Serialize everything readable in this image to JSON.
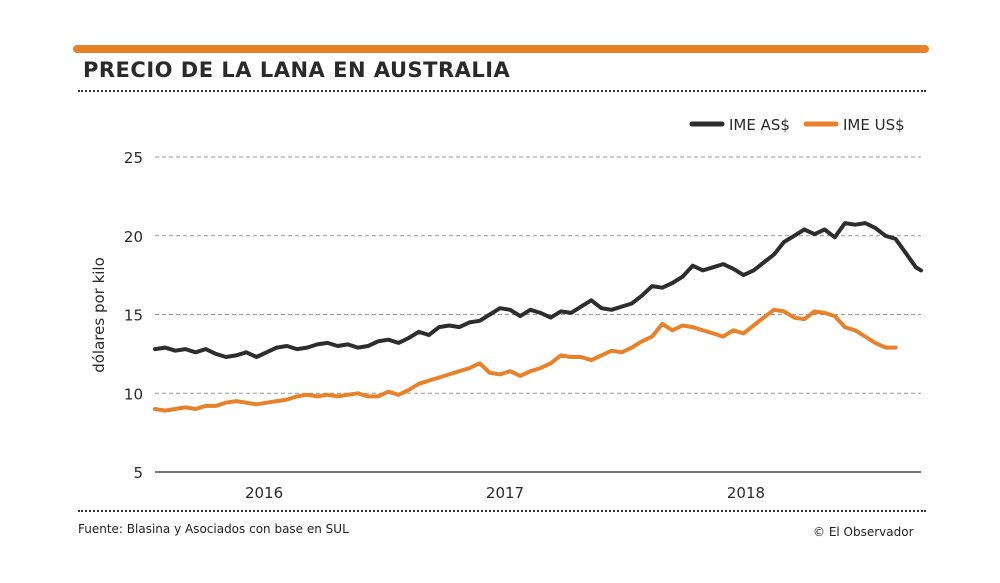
{
  "header": {
    "title": "PRECIO DE LA LANA EN AUSTRALIA"
  },
  "footer": {
    "source": "Fuente: Blasina y Asociados con base en SUL",
    "credit": "© El Observador"
  },
  "colors": {
    "accent": "#e8822a",
    "series_dark": "#2d2d2d",
    "series_orange": "#e8822a",
    "grid": "#999999"
  },
  "chart_data": {
    "type": "line",
    "title": "PRECIO DE LA LANA EN AUSTRALIA",
    "xlabel": "",
    "ylabel": "dólares por kilo",
    "ylim": [
      5,
      25
    ],
    "yticks": [
      5,
      10,
      15,
      20,
      25
    ],
    "xlim": [
      2015.57,
      2018.59
    ],
    "xticks": [
      {
        "label": "2016",
        "value": 2016.0
      },
      {
        "label": "2017",
        "value": 2016.95
      },
      {
        "label": "2018",
        "value": 2017.9
      }
    ],
    "grid": true,
    "legend_position": "top-right",
    "series": [
      {
        "name": "IME AS$",
        "color": "#2d2d2d",
        "points": [
          [
            2015.57,
            12.8
          ],
          [
            2015.61,
            12.9
          ],
          [
            2015.65,
            12.7
          ],
          [
            2015.69,
            12.8
          ],
          [
            2015.73,
            12.6
          ],
          [
            2015.77,
            12.8
          ],
          [
            2015.81,
            12.5
          ],
          [
            2015.85,
            12.3
          ],
          [
            2015.89,
            12.4
          ],
          [
            2015.93,
            12.6
          ],
          [
            2015.97,
            12.3
          ],
          [
            2016.01,
            12.6
          ],
          [
            2016.05,
            12.9
          ],
          [
            2016.09,
            13.0
          ],
          [
            2016.13,
            12.8
          ],
          [
            2016.17,
            12.9
          ],
          [
            2016.21,
            13.1
          ],
          [
            2016.25,
            13.2
          ],
          [
            2016.29,
            13.0
          ],
          [
            2016.33,
            13.1
          ],
          [
            2016.37,
            12.9
          ],
          [
            2016.41,
            13.0
          ],
          [
            2016.45,
            13.3
          ],
          [
            2016.49,
            13.4
          ],
          [
            2016.53,
            13.2
          ],
          [
            2016.57,
            13.5
          ],
          [
            2016.61,
            13.9
          ],
          [
            2016.65,
            13.7
          ],
          [
            2016.69,
            14.2
          ],
          [
            2016.73,
            14.3
          ],
          [
            2016.77,
            14.2
          ],
          [
            2016.81,
            14.5
          ],
          [
            2016.85,
            14.6
          ],
          [
            2016.89,
            15.0
          ],
          [
            2016.93,
            15.4
          ],
          [
            2016.97,
            15.3
          ],
          [
            2017.01,
            14.9
          ],
          [
            2017.05,
            15.3
          ],
          [
            2017.09,
            15.1
          ],
          [
            2017.13,
            14.8
          ],
          [
            2017.17,
            15.2
          ],
          [
            2017.21,
            15.1
          ],
          [
            2017.25,
            15.5
          ],
          [
            2017.29,
            15.9
          ],
          [
            2017.33,
            15.4
          ],
          [
            2017.37,
            15.3
          ],
          [
            2017.41,
            15.5
          ],
          [
            2017.45,
            15.7
          ],
          [
            2017.49,
            16.2
          ],
          [
            2017.53,
            16.8
          ],
          [
            2017.57,
            16.7
          ],
          [
            2017.61,
            17.0
          ],
          [
            2017.65,
            17.4
          ],
          [
            2017.69,
            18.1
          ],
          [
            2017.73,
            17.8
          ],
          [
            2017.77,
            18.0
          ],
          [
            2017.81,
            18.2
          ],
          [
            2017.85,
            17.9
          ],
          [
            2017.89,
            17.5
          ],
          [
            2017.93,
            17.8
          ],
          [
            2017.97,
            18.3
          ],
          [
            2018.01,
            18.8
          ],
          [
            2018.05,
            19.6
          ],
          [
            2018.09,
            20.0
          ],
          [
            2018.13,
            20.4
          ],
          [
            2018.17,
            20.1
          ],
          [
            2018.21,
            20.4
          ],
          [
            2018.25,
            19.9
          ],
          [
            2018.29,
            20.8
          ],
          [
            2018.33,
            20.7
          ],
          [
            2018.37,
            20.8
          ],
          [
            2018.41,
            20.5
          ],
          [
            2018.45,
            20.0
          ],
          [
            2018.49,
            19.8
          ],
          [
            2018.53,
            18.9
          ],
          [
            2018.57,
            18.0
          ],
          [
            2018.59,
            17.8
          ]
        ]
      },
      {
        "name": "IME US$",
        "color": "#e8822a",
        "points": [
          [
            2015.57,
            9.0
          ],
          [
            2015.61,
            8.9
          ],
          [
            2015.65,
            9.0
          ],
          [
            2015.69,
            9.1
          ],
          [
            2015.73,
            9.0
          ],
          [
            2015.77,
            9.2
          ],
          [
            2015.81,
            9.2
          ],
          [
            2015.85,
            9.4
          ],
          [
            2015.89,
            9.5
          ],
          [
            2015.93,
            9.4
          ],
          [
            2015.97,
            9.3
          ],
          [
            2016.01,
            9.4
          ],
          [
            2016.05,
            9.5
          ],
          [
            2016.09,
            9.6
          ],
          [
            2016.13,
            9.8
          ],
          [
            2016.17,
            9.9
          ],
          [
            2016.21,
            9.8
          ],
          [
            2016.25,
            9.9
          ],
          [
            2016.29,
            9.8
          ],
          [
            2016.33,
            9.9
          ],
          [
            2016.37,
            10.0
          ],
          [
            2016.41,
            9.8
          ],
          [
            2016.45,
            9.8
          ],
          [
            2016.49,
            10.1
          ],
          [
            2016.53,
            9.9
          ],
          [
            2016.57,
            10.2
          ],
          [
            2016.61,
            10.6
          ],
          [
            2016.65,
            10.8
          ],
          [
            2016.69,
            11.0
          ],
          [
            2016.73,
            11.2
          ],
          [
            2016.77,
            11.4
          ],
          [
            2016.81,
            11.6
          ],
          [
            2016.85,
            11.9
          ],
          [
            2016.89,
            11.3
          ],
          [
            2016.93,
            11.2
          ],
          [
            2016.97,
            11.4
          ],
          [
            2017.01,
            11.1
          ],
          [
            2017.05,
            11.4
          ],
          [
            2017.09,
            11.6
          ],
          [
            2017.13,
            11.9
          ],
          [
            2017.17,
            12.4
          ],
          [
            2017.21,
            12.3
          ],
          [
            2017.25,
            12.3
          ],
          [
            2017.29,
            12.1
          ],
          [
            2017.33,
            12.4
          ],
          [
            2017.37,
            12.7
          ],
          [
            2017.41,
            12.6
          ],
          [
            2017.45,
            12.9
          ],
          [
            2017.49,
            13.3
          ],
          [
            2017.53,
            13.6
          ],
          [
            2017.57,
            14.4
          ],
          [
            2017.61,
            14.0
          ],
          [
            2017.65,
            14.3
          ],
          [
            2017.69,
            14.2
          ],
          [
            2017.73,
            14.0
          ],
          [
            2017.77,
            13.8
          ],
          [
            2017.81,
            13.6
          ],
          [
            2017.85,
            14.0
          ],
          [
            2017.89,
            13.8
          ],
          [
            2017.93,
            14.3
          ],
          [
            2017.97,
            14.8
          ],
          [
            2018.01,
            15.3
          ],
          [
            2018.05,
            15.2
          ],
          [
            2018.09,
            14.8
          ],
          [
            2018.13,
            14.7
          ],
          [
            2018.17,
            15.2
          ],
          [
            2018.21,
            15.1
          ],
          [
            2018.25,
            14.9
          ],
          [
            2018.29,
            14.2
          ],
          [
            2018.33,
            14.0
          ],
          [
            2018.37,
            13.6
          ],
          [
            2018.41,
            13.2
          ],
          [
            2018.45,
            12.9
          ],
          [
            2018.49,
            12.9
          ]
        ]
      }
    ]
  }
}
